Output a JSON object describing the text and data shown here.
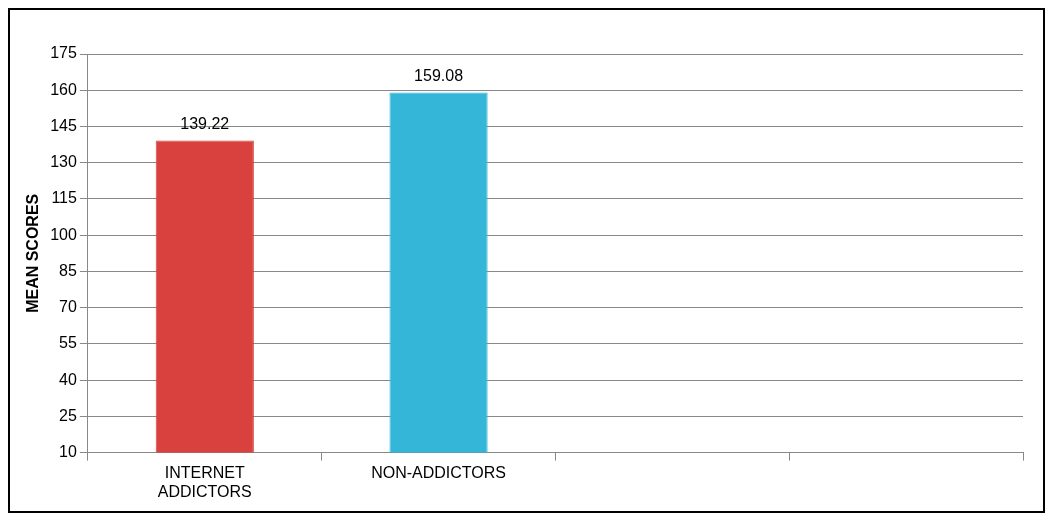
{
  "chart_data": {
    "type": "bar",
    "ylabel": "MEAN SCORES",
    "categories": [
      "INTERNET ADDICTORS",
      "NON-ADDICTORS",
      null,
      null
    ],
    "values": [
      139.22,
      159.08,
      null,
      null
    ],
    "colors": [
      "#d9413f",
      "#33b6d8",
      "#d9413f",
      "#33b6d8"
    ],
    "ylim": [
      10,
      175
    ],
    "yticks": [
      10,
      25,
      40,
      55,
      70,
      85,
      100,
      115,
      130,
      145,
      160,
      175
    ],
    "grid": "y",
    "legend": false,
    "data_labels": true
  }
}
